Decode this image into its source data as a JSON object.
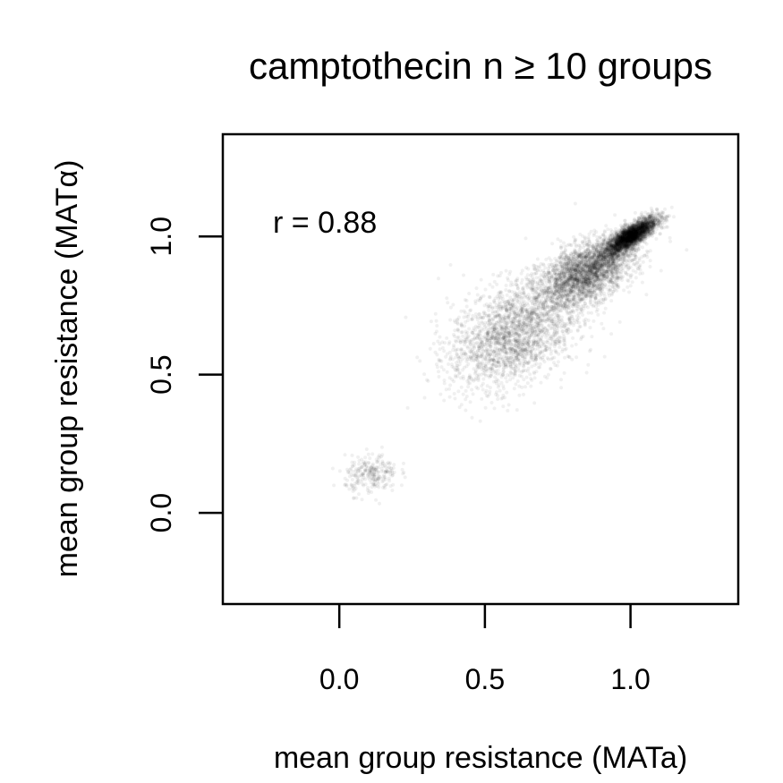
{
  "chart_data": {
    "type": "scatter",
    "title": "camptothecin n ≥ 10 groups",
    "xlabel": "mean group resistance (MATa)",
    "ylabel": "mean group resistance (MATα)",
    "xlim": [
      -0.4,
      1.37
    ],
    "ylim": [
      -0.33,
      1.37
    ],
    "x_ticks": [
      {
        "value": 0.0,
        "label": "0.0"
      },
      {
        "value": 0.5,
        "label": "0.5"
      },
      {
        "value": 1.0,
        "label": "1.0"
      }
    ],
    "y_ticks": [
      {
        "value": 0.0,
        "label": "0.0"
      },
      {
        "value": 0.5,
        "label": "0.5"
      },
      {
        "value": 1.0,
        "label": "1.0"
      }
    ],
    "grid": false,
    "legend": "none",
    "annotation": "r = 0.88",
    "point_color": "#000000",
    "point_alpha": 0.06,
    "clusters": [
      {
        "center": [
          1.0,
          1.0
        ],
        "spread": [
          0.045,
          0.035
        ],
        "count": 3000,
        "corr": 0.8
      },
      {
        "center": [
          0.85,
          0.87
        ],
        "spread": [
          0.08,
          0.06
        ],
        "count": 2600,
        "corr": 0.5
      },
      {
        "center": [
          0.6,
          0.65
        ],
        "spread": [
          0.11,
          0.1
        ],
        "count": 2200,
        "corr": 0.4
      },
      {
        "center": [
          0.11,
          0.14
        ],
        "spread": [
          0.045,
          0.035
        ],
        "count": 260,
        "corr": 0.1
      }
    ]
  }
}
